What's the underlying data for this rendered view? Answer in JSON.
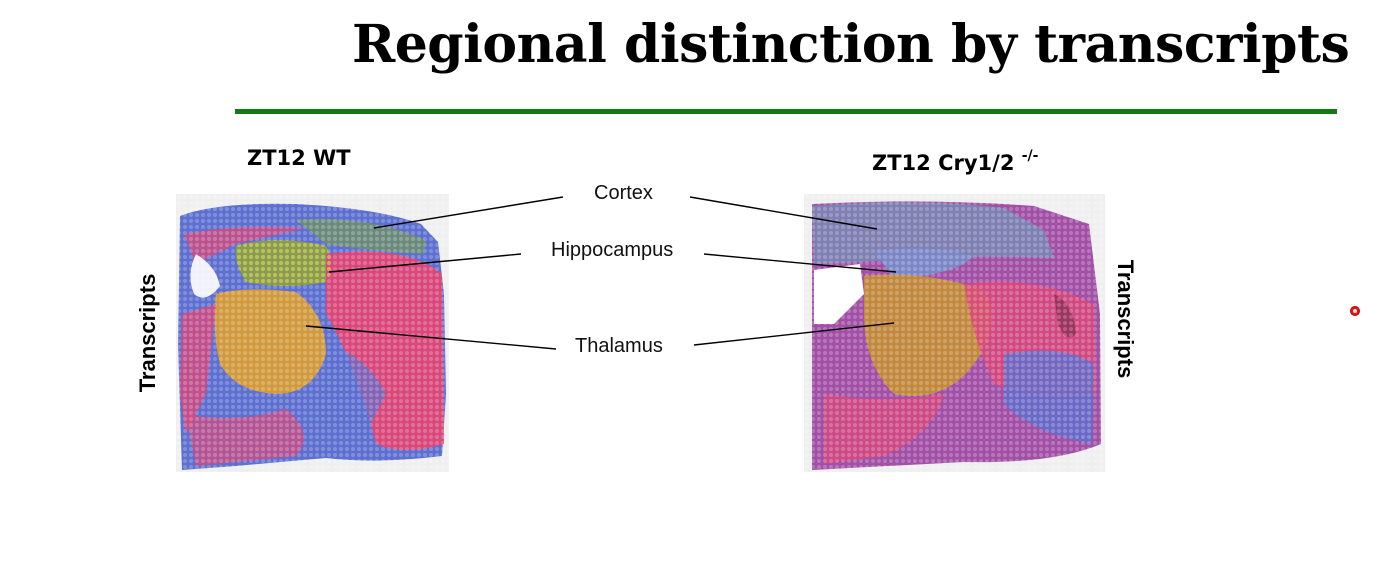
{
  "slide": {
    "title": "Regional distinction by transcripts",
    "accent_color": "#127a12"
  },
  "left_panel": {
    "label": "ZT12 WT",
    "side_label": "Transcripts"
  },
  "right_panel": {
    "label_main": "ZT12 Cry1/2",
    "label_sup": "-/-",
    "side_label": "Transcripts"
  },
  "regions": {
    "cortex": "Cortex",
    "hippocampus": "Hippocampus",
    "thalamus": "Thalamus"
  },
  "palette": {
    "blue": "#5d6fd0",
    "pink": "#d9487a",
    "green": "#7d9a58",
    "orange": "#d19a3e",
    "magenta": "#a24fa6",
    "tissue_bg": "#eeeeee"
  },
  "icons": {
    "pointer": "laser-pointer-dot-icon"
  }
}
